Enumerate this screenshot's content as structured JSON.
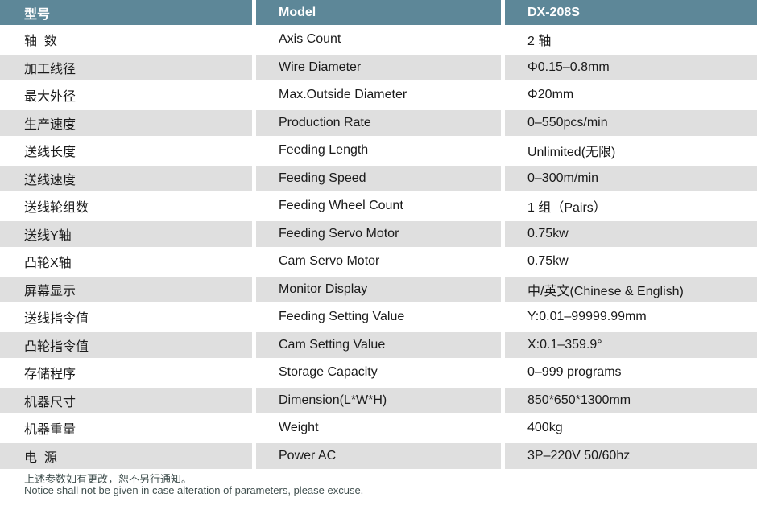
{
  "colors": {
    "header_bg": "#5D8798",
    "row_bg": "#FFFFFF",
    "row_alt_bg": "#DFDFDF",
    "text": "#1A1A1A",
    "footer_text": "#41504F"
  },
  "table": {
    "header": {
      "col_zh": "型号",
      "col_en": "Model",
      "col_value": "DX-208S"
    },
    "rows": [
      {
        "zh": "轴  数",
        "en": "Axis Count",
        "value": "2 轴"
      },
      {
        "zh": "加工线径",
        "en": "Wire Diameter",
        "value": "Φ0.15–0.8mm"
      },
      {
        "zh": "最大外径",
        "en": "Max.Outside Diameter",
        "value": "Φ20mm"
      },
      {
        "zh": "生产速度",
        "en": "Production Rate",
        "value": "0–550pcs/min"
      },
      {
        "zh": "送线长度",
        "en": "Feeding Length",
        "value": "Unlimited(无限)"
      },
      {
        "zh": "送线速度",
        "en": "Feeding Speed",
        "value": "0–300m/min"
      },
      {
        "zh": "送线轮组数",
        "en": "Feeding Wheel Count",
        "value": "1 组（Pairs）"
      },
      {
        "zh": "送线Y轴",
        "en": "Feeding Servo Motor",
        "value": "0.75kw"
      },
      {
        "zh": "凸轮X轴",
        "en": "Cam Servo Motor",
        "value": "0.75kw"
      },
      {
        "zh": "屏幕显示",
        "en": "Monitor Display",
        "value": "中/英文(Chinese & English)"
      },
      {
        "zh": "送线指令值",
        "en": "Feeding Setting Value",
        "value": "Y:0.01–99999.99mm"
      },
      {
        "zh": "凸轮指令值",
        "en": "Cam Setting Value",
        "value": "X:0.1–359.9°"
      },
      {
        "zh": "存储程序",
        "en": "Storage Capacity",
        "value": "0–999 programs"
      },
      {
        "zh": "机器尺寸",
        "en": "Dimension(L*W*H)",
        "value": "850*650*1300mm"
      },
      {
        "zh": "机器重量",
        "en": "Weight",
        "value": "400kg"
      },
      {
        "zh": "电  源",
        "en": "Power AC",
        "value": "3P–220V 50/60hz"
      }
    ]
  },
  "footer": {
    "note_zh": "上述参数如有更改，恕不另行通知。",
    "note_en": "Notice shall not be given in case alteration of parameters, please excuse."
  }
}
